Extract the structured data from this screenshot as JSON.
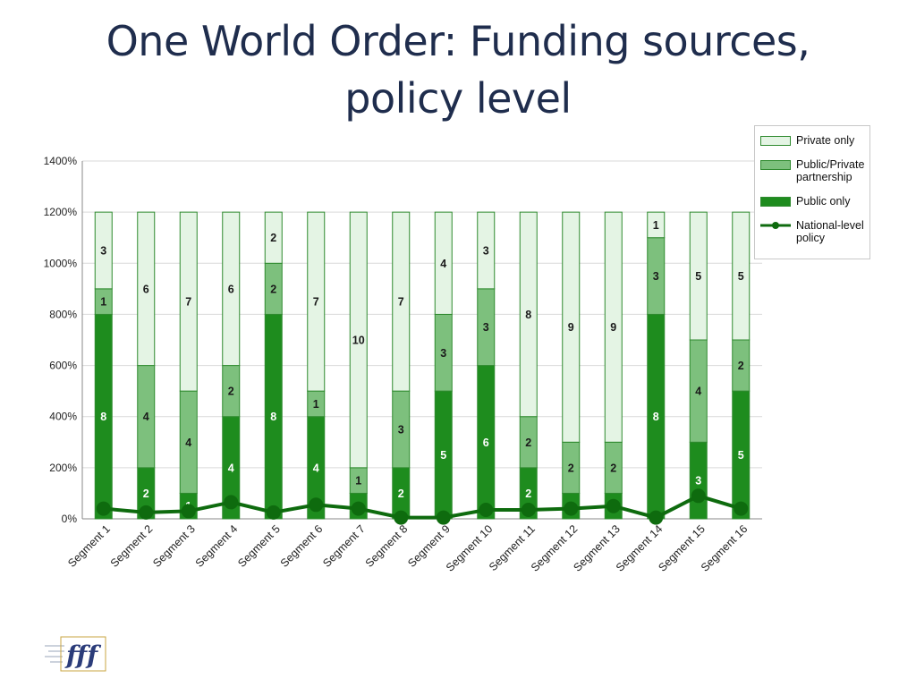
{
  "title_line1": "One World Order: Funding sources,",
  "title_line2": "policy level",
  "legend": {
    "private": "Private only",
    "partnership": "Public/Private partnership",
    "public": "Public only",
    "policy": "National-level policy"
  },
  "colors": {
    "public": "#1e8c1e",
    "partnership": "#7dc07d",
    "private": "#e4f4e4",
    "policy": "#0e6b0e",
    "stroke": "#2f8a2f"
  },
  "logo_text": "fff",
  "chart_data": {
    "type": "bar",
    "stacked": true,
    "categories": [
      "Segment 1",
      "Segment 2",
      "Segment 3",
      "Segment 4",
      "Segment 5",
      "Segment 6",
      "Segment 7",
      "Segment 8",
      "Segment 9",
      "Segment 10",
      "Segment 11",
      "Segment 12",
      "Segment 13",
      "Segment 14",
      "Segment 15",
      "Segment 16"
    ],
    "y_ticks": [
      "0%",
      "200%",
      "400%",
      "600%",
      "800%",
      "1000%",
      "1200%",
      "1400%"
    ],
    "ylim": [
      0,
      1400
    ],
    "series": [
      {
        "name": "Public only",
        "key": "public",
        "values": [
          8,
          2,
          1,
          4,
          8,
          4,
          1,
          2,
          5,
          6,
          2,
          1,
          1,
          8,
          3,
          5
        ]
      },
      {
        "name": "Public/Private partnership",
        "key": "partnership",
        "values": [
          1,
          4,
          4,
          2,
          2,
          1,
          1,
          3,
          3,
          3,
          2,
          2,
          2,
          3,
          4,
          2
        ]
      },
      {
        "name": "Private only",
        "key": "private",
        "values": [
          3,
          6,
          7,
          6,
          2,
          7,
          10,
          7,
          4,
          3,
          8,
          9,
          9,
          1,
          5,
          5
        ]
      }
    ],
    "line": {
      "name": "National-level policy",
      "values": [
        40,
        25,
        30,
        65,
        25,
        55,
        40,
        5,
        5,
        35,
        35,
        40,
        50,
        5,
        90,
        40
      ]
    },
    "grid": true,
    "legend_position": "top-right"
  }
}
